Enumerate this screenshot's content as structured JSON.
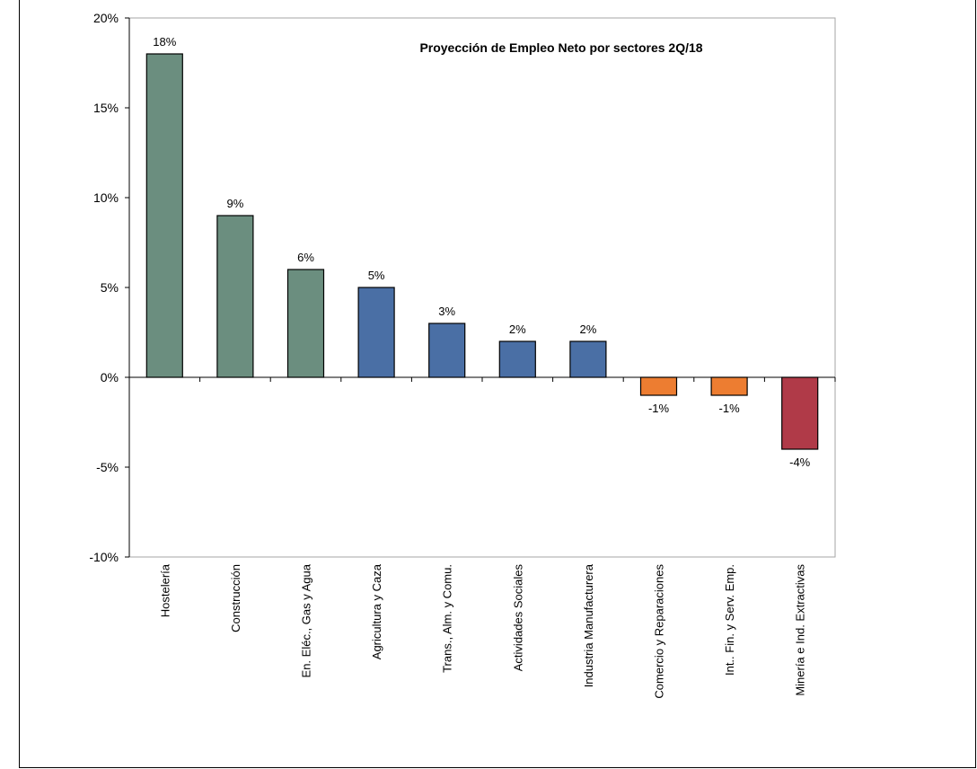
{
  "chart_data": {
    "type": "bar",
    "title": "Proyección de Empleo Neto por sectores  2Q/18",
    "xlabel": "",
    "ylabel": "",
    "ylim": [
      -10,
      20
    ],
    "yticks": [
      20,
      15,
      10,
      5,
      0,
      -5,
      -10
    ],
    "ytick_labels": [
      "20%",
      "15%",
      "10%",
      "5%",
      "0%",
      "-5%",
      "-10%"
    ],
    "grid": false,
    "categories": [
      "Hostelería",
      "Construcción",
      "En. Eléc., Gas y Agua",
      "Agricultura y Caza",
      "Trans., Alm. y Comu.",
      "Actividades Sociales",
      "Industria Manufacturera",
      "Comercio y Reparaciones",
      "Int.. Fin.  y Serv. Emp.",
      "Minería e Ind. Extractivas"
    ],
    "values": [
      18,
      9,
      6,
      5,
      3,
      2,
      2,
      -1,
      -1,
      -4
    ],
    "data_labels": [
      "18%",
      "9%",
      "6%",
      "5%",
      "3%",
      "2%",
      "2%",
      "-1%",
      "-1%",
      "-4%"
    ],
    "bar_colors": [
      "#6b8e7f",
      "#6b8e7f",
      "#6b8e7f",
      "#4a6fa5",
      "#4a6fa5",
      "#4a6fa5",
      "#4a6fa5",
      "#ed7d31",
      "#ed7d31",
      "#b03a48"
    ]
  }
}
